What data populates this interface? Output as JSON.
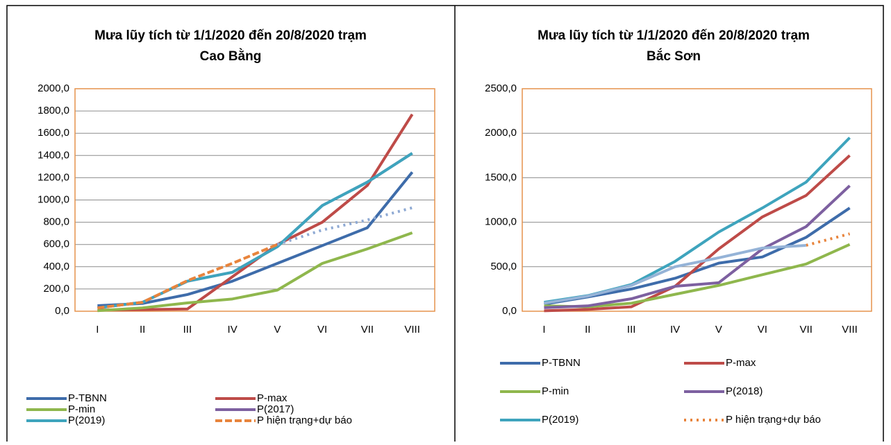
{
  "chart_data": [
    {
      "type": "line",
      "title": [
        "Mưa lũy tích từ 1/1/2020 đến 20/8/2020 trạm",
        "Cao Bằng"
      ],
      "categories": [
        "I",
        "II",
        "III",
        "IV",
        "V",
        "VI",
        "VII",
        "VIII"
      ],
      "ylim": [
        0,
        2000
      ],
      "yticks": [
        {
          "value": 0,
          "label": "0,0"
        },
        {
          "value": 200,
          "label": "200,0"
        },
        {
          "value": 400,
          "label": "400,0"
        },
        {
          "value": 600,
          "label": "600,0"
        },
        {
          "value": 800,
          "label": "800,0"
        },
        {
          "value": 1000,
          "label": "1000,0"
        },
        {
          "value": 1200,
          "label": "1200,0"
        },
        {
          "value": 1400,
          "label": "1400,0"
        },
        {
          "value": 1600,
          "label": "1600,0"
        },
        {
          "value": 1800,
          "label": "1800,0"
        },
        {
          "value": 2000,
          "label": "2000,0"
        }
      ],
      "grid": true,
      "series": [
        {
          "name": "P-TBNN",
          "color": "#3e6caa",
          "values": [
            50,
            70,
            150,
            270,
            430,
            590,
            750,
            1250
          ]
        },
        {
          "name": "P-max",
          "color": "#be4b48",
          "values": [
            10,
            15,
            20,
            310,
            600,
            800,
            1130,
            1770
          ]
        },
        {
          "name": "P-min",
          "color": "#8fb74d",
          "values": [
            5,
            30,
            75,
            110,
            190,
            430,
            560,
            705
          ]
        },
        {
          "name": "P(2017)",
          "color": "#7d60a0",
          "values": [
            30,
            80,
            270,
            350,
            580,
            950,
            1160,
            1420
          ]
        },
        {
          "name": "P(2019)",
          "color": "#3ea4bd",
          "values": [
            30,
            80,
            270,
            350,
            580,
            950,
            1160,
            1420
          ]
        },
        {
          "name": "P hiện trạng+dự báo",
          "color": "#e8843c",
          "style": "dashed",
          "values": [
            30,
            80,
            275,
            430,
            600,
            null,
            null,
            null
          ]
        },
        {
          "color": "#8ea9d3",
          "style": "dotted",
          "values": [
            null,
            null,
            null,
            null,
            600,
            730,
            820,
            930
          ]
        }
      ]
    },
    {
      "type": "line",
      "title": [
        "Mưa lũy tích từ 1/1/2020 đến 20/8/2020 trạm",
        "Bắc Sơn"
      ],
      "categories": [
        "I",
        "II",
        "III",
        "IV",
        "V",
        "VI",
        "VII",
        "VIII"
      ],
      "ylim": [
        0,
        2500
      ],
      "yticks": [
        {
          "value": 0,
          "label": "0,0"
        },
        {
          "value": 500,
          "label": "500,0"
        },
        {
          "value": 1000,
          "label": "1000,0"
        },
        {
          "value": 1500,
          "label": "1500,0"
        },
        {
          "value": 2000,
          "label": "2000,0"
        },
        {
          "value": 2500,
          "label": "2500,0"
        }
      ],
      "grid": true,
      "series": [
        {
          "name": "P-TBNN",
          "color": "#3e6caa",
          "values": [
            80,
            160,
            250,
            370,
            540,
            610,
            830,
            1160
          ]
        },
        {
          "name": "P-max",
          "color": "#be4b48",
          "values": [
            5,
            20,
            50,
            280,
            700,
            1060,
            1300,
            1750
          ]
        },
        {
          "name": "P-min",
          "color": "#8fb74d",
          "values": [
            60,
            50,
            90,
            190,
            290,
            410,
            530,
            750
          ]
        },
        {
          "name": "P(2018)",
          "color": "#7d60a0",
          "values": [
            40,
            60,
            140,
            280,
            320,
            700,
            950,
            1410
          ]
        },
        {
          "name": "P(2019)",
          "color": "#3ea4bd",
          "values": [
            100,
            175,
            300,
            560,
            890,
            1160,
            1450,
            1950
          ]
        },
        {
          "name": "P hiện trạng+dự báo",
          "color": "#e8843c",
          "style": "dotted",
          "values": [
            null,
            null,
            null,
            null,
            null,
            null,
            740,
            870
          ]
        },
        {
          "color": "#95b3d7",
          "values": [
            90,
            170,
            290,
            500,
            600,
            710,
            740,
            null
          ]
        }
      ]
    }
  ]
}
